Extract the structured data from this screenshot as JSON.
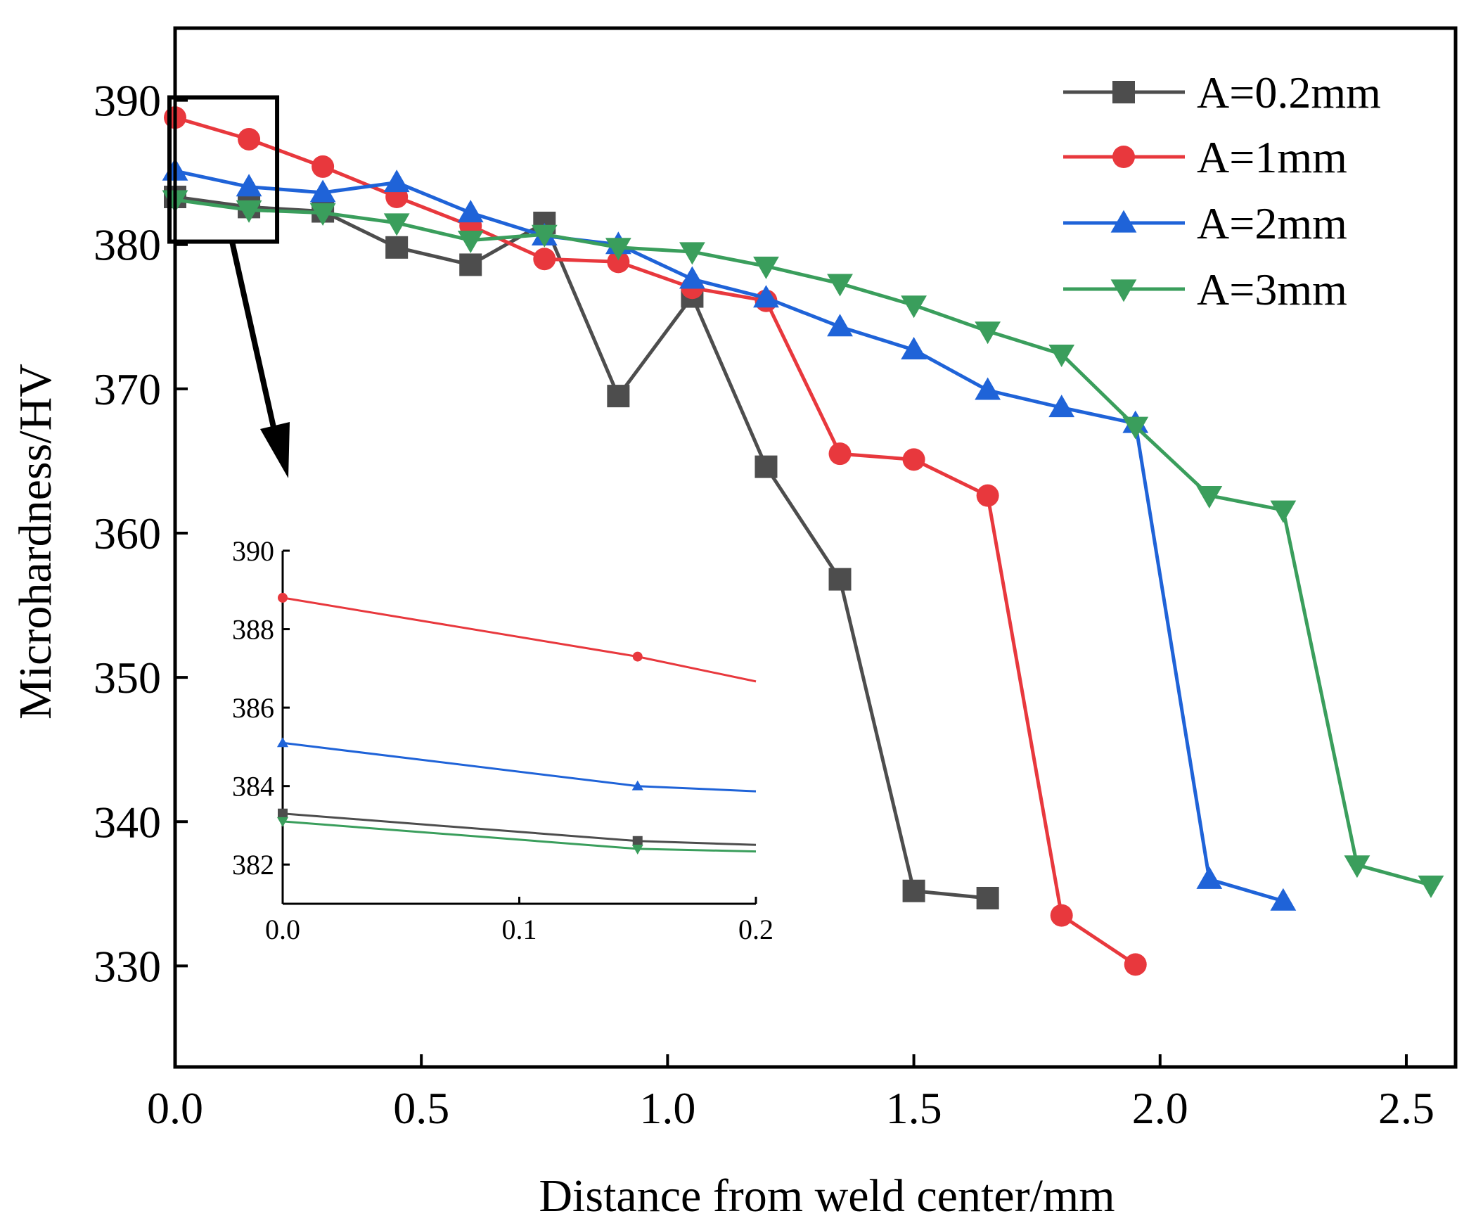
{
  "chart_data": {
    "type": "line",
    "xlabel": "Distance from weld center/mm",
    "ylabel": "Microhardness/HV",
    "xlim": [
      0,
      2.6
    ],
    "ylim": [
      323,
      395
    ],
    "xticks": [
      0.0,
      0.5,
      1.0,
      1.5,
      2.0,
      2.5
    ],
    "xtick_labels": [
      "0.0",
      "0.5",
      "1.0",
      "1.5",
      "2.0",
      "2.5"
    ],
    "yticks": [
      330,
      340,
      350,
      360,
      370,
      380,
      390
    ],
    "ytick_labels": [
      "330",
      "340",
      "350",
      "360",
      "370",
      "380",
      "390"
    ],
    "legend_position": "top-right",
    "series": [
      {
        "name": "A=0.2mm",
        "color": "#4d4d4d",
        "marker": "square",
        "x": [
          0,
          0.15,
          0.3,
          0.45,
          0.6,
          0.75,
          0.9,
          1.05,
          1.2,
          1.35,
          1.5,
          1.65
        ],
        "y": [
          383.3,
          382.6,
          382.3,
          379.8,
          378.6,
          381.5,
          369.5,
          376.4,
          364.6,
          356.8,
          335.2,
          334.7
        ]
      },
      {
        "name": "A=1mm",
        "color": "#e8383d",
        "marker": "circle",
        "x": [
          0,
          0.15,
          0.3,
          0.45,
          0.6,
          0.75,
          0.9,
          1.05,
          1.2,
          1.35,
          1.5,
          1.65,
          1.8,
          1.95
        ],
        "y": [
          388.8,
          387.3,
          385.4,
          383.3,
          381.3,
          379.0,
          378.8,
          377.0,
          376.1,
          365.5,
          365.1,
          362.6,
          333.5,
          330.1
        ]
      },
      {
        "name": "A=2mm",
        "color": "#1f63d8",
        "marker": "triangle-up",
        "x": [
          0,
          0.15,
          0.3,
          0.45,
          0.6,
          0.75,
          0.9,
          1.05,
          1.2,
          1.35,
          1.5,
          1.65,
          1.8,
          1.95,
          2.1,
          2.25
        ],
        "y": [
          385.1,
          384.0,
          383.6,
          384.3,
          382.2,
          380.6,
          380.0,
          377.6,
          376.3,
          374.3,
          372.7,
          369.9,
          368.7,
          367.6,
          336.0,
          334.5
        ]
      },
      {
        "name": "A=3mm",
        "color": "#3a9e5c",
        "marker": "triangle-down",
        "x": [
          0,
          0.15,
          0.3,
          0.45,
          0.6,
          0.75,
          0.9,
          1.05,
          1.2,
          1.35,
          1.5,
          1.65,
          1.8,
          1.95,
          2.1,
          2.25,
          2.4,
          2.55
        ],
        "y": [
          383.1,
          382.4,
          382.2,
          381.5,
          380.3,
          380.7,
          379.8,
          379.5,
          378.5,
          377.3,
          375.8,
          374.0,
          372.4,
          367.4,
          362.6,
          361.6,
          337.0,
          335.6
        ]
      }
    ],
    "inset": {
      "xlim": [
        0,
        0.2
      ],
      "ylim": [
        381,
        390
      ],
      "xticks": [
        0.0,
        0.1,
        0.2
      ],
      "xtick_labels": [
        "0.0",
        "0.1",
        "0.2"
      ],
      "yticks": [
        382,
        384,
        386,
        388,
        390
      ],
      "ytick_labels": [
        "382",
        "384",
        "386",
        "388",
        "390"
      ],
      "zoom_x_range": [
        0,
        0.2
      ],
      "zoom_y_range": [
        380.3,
        390.1
      ]
    }
  }
}
